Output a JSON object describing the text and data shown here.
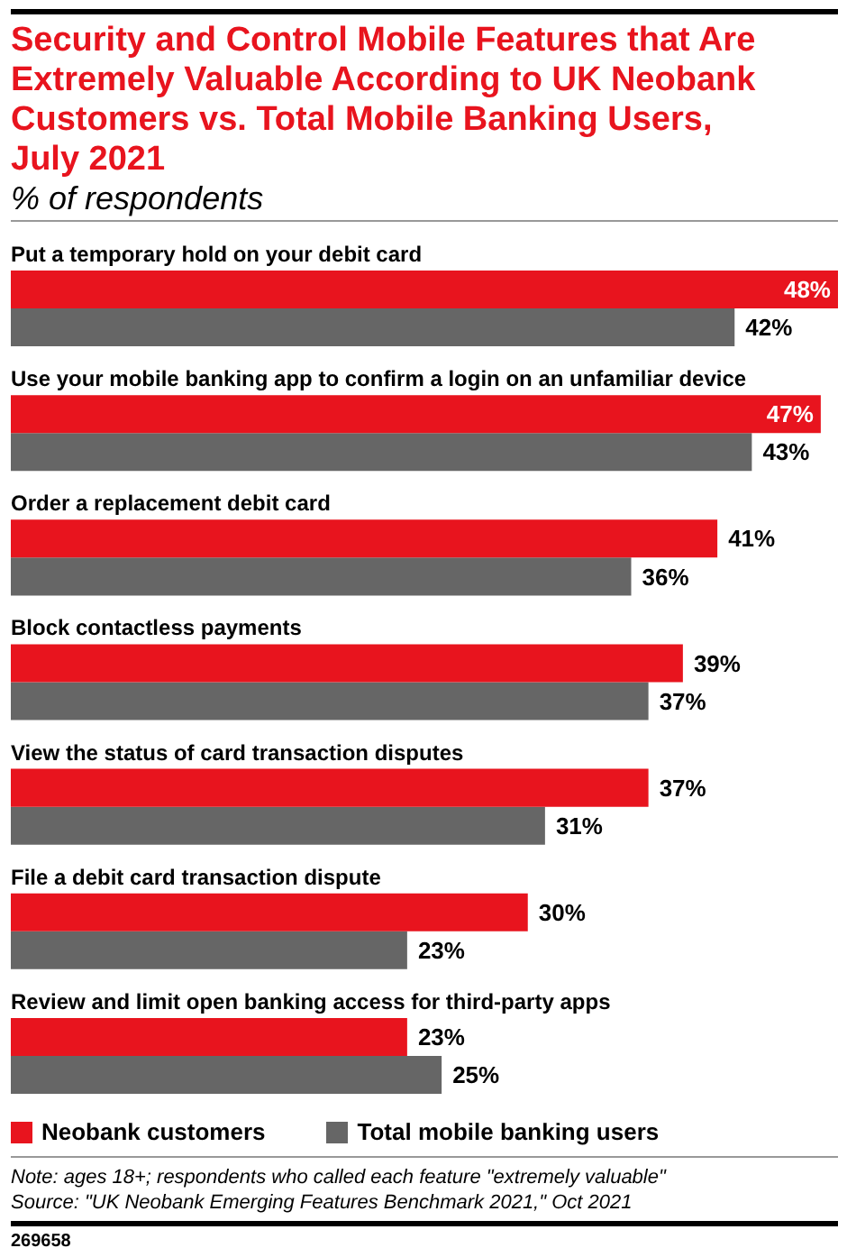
{
  "chart_data": {
    "type": "bar",
    "orientation": "horizontal",
    "title": "Security and Control Mobile Features that Are Extremely Valuable According to UK Neobank Customers vs. Total Mobile Banking Users, July 2021",
    "subtitle": "% of respondents",
    "categories": [
      "Put a temporary hold on your debit card",
      "Use your mobile banking app to confirm a login on an unfamiliar device",
      "Order a replacement debit card",
      "Block contactless payments",
      "View the status of card transaction disputes",
      "File a debit card transaction dispute",
      "Review and limit open banking access for third-party apps"
    ],
    "series": [
      {
        "name": "Neobank customers",
        "color": "#e8141e",
        "values": [
          48,
          47,
          41,
          39,
          37,
          30,
          23
        ],
        "value_labels": [
          "48%",
          "47%",
          "41%",
          "39%",
          "37%",
          "30%",
          "23%"
        ]
      },
      {
        "name": "Total mobile banking users",
        "color": "#666666",
        "values": [
          42,
          43,
          36,
          37,
          31,
          23,
          25
        ],
        "value_labels": [
          "42%",
          "43%",
          "36%",
          "37%",
          "31%",
          "23%",
          "25%"
        ]
      }
    ],
    "xlim": [
      0,
      48
    ],
    "legend": "bottom left",
    "tick_labels": "y",
    "annotations": [
      "Note: ages 18+; respondents who called each feature \"extremely valuable\"",
      "Source: \"UK Neobank Emerging Features Benchmark 2021,\" Oct 2021",
      "269658"
    ]
  }
}
